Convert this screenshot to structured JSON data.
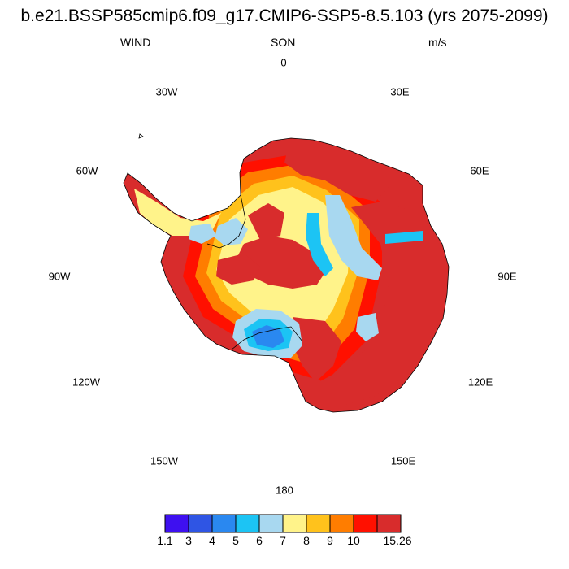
{
  "title": "b.e21.BSSP585cmip6.f09_g17.CMIP6-SSP5-8.5.103 (yrs 2075-2099)",
  "left_label": "WIND",
  "center_label": "SON",
  "right_label": "m/s",
  "longitude_labels": {
    "top": "0",
    "top_right": "30E",
    "right_upper": "60E",
    "right": "90E",
    "right_lower": "120E",
    "bottom_right": "150E",
    "bottom": "180",
    "bottom_left": "150W",
    "left_lower": "120W",
    "left": "90W",
    "left_upper": "60W",
    "top_left": "30W"
  },
  "colorbar": {
    "labels": [
      "1.1",
      "3",
      "4",
      "5",
      "6",
      "7",
      "8",
      "9",
      "10",
      "15.26"
    ],
    "colors": [
      "#3e10f0",
      "#2f55e4",
      "#2a88f0",
      "#1cc4f4",
      "#a8d8f0",
      "#fff38a",
      "#ffc21c",
      "#ff7d00",
      "#ff1000",
      "#d82c2c"
    ]
  },
  "palette": {
    "c1": "#3e10f0",
    "c2": "#2f55e4",
    "c3": "#2a88f0",
    "c4": "#1cc4f4",
    "c5": "#a8d8f0",
    "c6": "#fff38a",
    "c7": "#ffc21c",
    "c8": "#ff7d00",
    "c9": "#ff1000",
    "c10": "#d82c2c"
  }
}
